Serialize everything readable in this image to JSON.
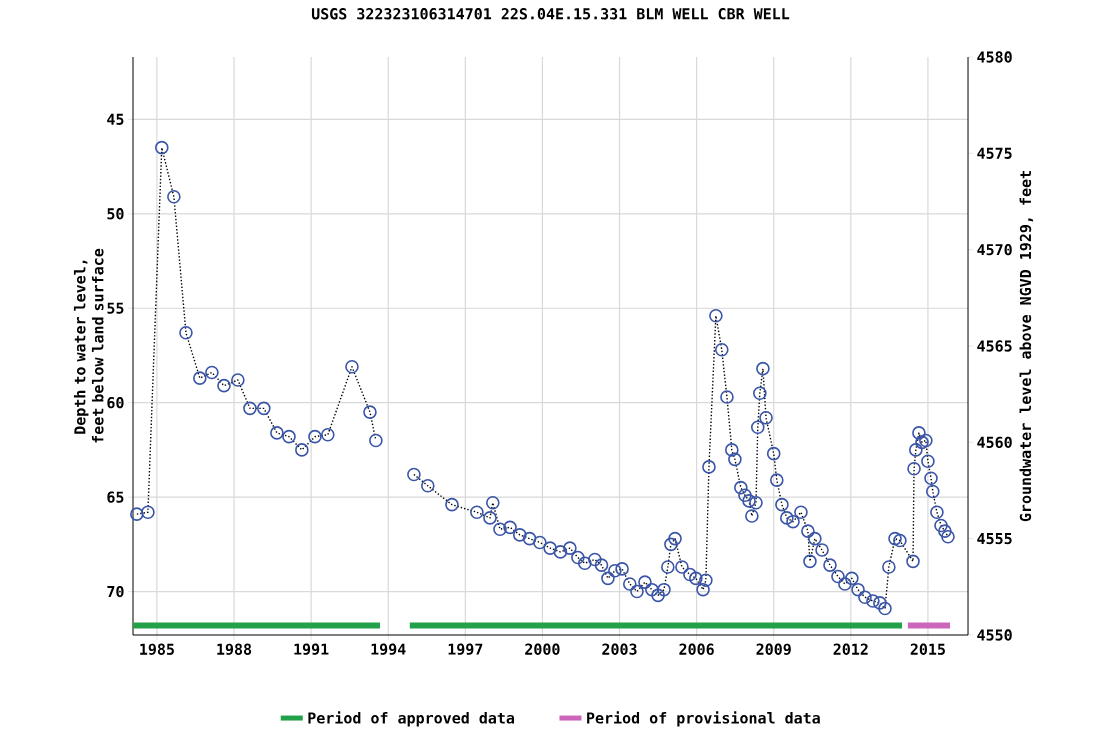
{
  "chart_data": {
    "type": "line",
    "title": "USGS 322323106314701 22S.04E.15.331 BLM WELL CBR WELL",
    "ylabel": "Depth to water level, feet below land surface",
    "y2label": "Groundwater level above NGVD 1929, feet",
    "xlim": [
      1984.07,
      2016.56
    ],
    "xticks": [
      1985,
      1988,
      1991,
      1994,
      1997,
      2000,
      2003,
      2006,
      2009,
      2012,
      2015
    ],
    "ylim": [
      72.3,
      41.7
    ],
    "yticks": [
      45,
      50,
      55,
      60,
      65,
      70
    ],
    "y2lim": [
      4550,
      4580
    ],
    "y2ticks": [
      4550,
      4555,
      4560,
      4565,
      4570,
      4575,
      4580
    ],
    "grid": true,
    "legend": "bottom",
    "series": [
      {
        "color": "#3a55a8",
        "marker": "circle",
        "line_style": "dotted",
        "x": [
          1984.22,
          1984.65,
          1985.19,
          1985.66,
          1986.13,
          1986.67,
          1987.14,
          1987.61,
          1988.15,
          1988.62,
          1989.16,
          1989.67,
          1990.14,
          1990.64,
          1991.15,
          1991.65,
          1992.59,
          1993.29,
          1993.52,
          1994.3,
          1995.0,
          1995.54,
          1996.48,
          1997.45,
          1997.96,
          1998.07,
          1998.35,
          1998.74,
          1999.12,
          1999.5,
          1999.9,
          2000.3,
          2000.7,
          2001.07,
          2001.38,
          2001.65,
          2002.04,
          2002.3,
          2002.55,
          2002.82,
          2003.1,
          2003.4,
          2003.68,
          2003.99,
          2004.26,
          2004.5,
          2004.73,
          2004.88,
          2005.0,
          2005.16,
          2005.43,
          2005.74,
          2005.97,
          2006.25,
          2006.36,
          2006.48,
          2006.75,
          2006.98,
          2007.18,
          2007.37,
          2007.49,
          2007.72,
          2007.88,
          2008.04,
          2008.15,
          2008.31,
          2008.38,
          2008.46,
          2008.58,
          2008.7,
          2009.0,
          2009.12,
          2009.32,
          2009.51,
          2009.75,
          2010.06,
          2010.33,
          2010.41,
          2010.6,
          2010.88,
          2011.19,
          2011.5,
          2011.77,
          2012.04,
          2012.28,
          2012.55,
          2012.86,
          2013.13,
          2013.33,
          2013.48,
          2013.72,
          2013.91,
          2014.42,
          2014.46,
          2014.53,
          2014.65,
          2014.77,
          2014.92,
          2015.0,
          2015.12,
          2015.19,
          2015.35,
          2015.51,
          2015.66,
          2015.78
        ],
        "values": [
          65.9,
          65.8,
          46.5,
          49.1,
          56.3,
          58.7,
          58.4,
          59.1,
          58.8,
          60.3,
          60.3,
          61.6,
          61.8,
          62.5,
          61.8,
          61.7,
          58.1,
          60.5,
          62.0,
          null,
          63.8,
          64.4,
          65.4,
          65.8,
          66.1,
          65.3,
          66.7,
          66.6,
          67.0,
          67.2,
          67.4,
          67.7,
          67.9,
          67.7,
          68.2,
          68.5,
          68.3,
          68.6,
          69.3,
          68.9,
          68.8,
          69.6,
          70.0,
          69.5,
          69.9,
          70.2,
          69.9,
          68.7,
          67.5,
          67.2,
          68.7,
          69.1,
          69.3,
          69.9,
          69.4,
          63.4,
          55.4,
          57.2,
          59.7,
          62.5,
          63.0,
          64.5,
          64.9,
          65.2,
          66.0,
          65.3,
          61.3,
          59.5,
          58.2,
          60.8,
          62.7,
          64.1,
          65.4,
          66.1,
          66.3,
          65.8,
          66.8,
          68.4,
          67.2,
          67.8,
          68.6,
          69.2,
          69.6,
          69.3,
          69.9,
          70.3,
          70.5,
          70.6,
          70.9,
          68.7,
          67.2,
          67.3,
          68.4,
          63.5,
          62.5,
          61.6,
          62.1,
          62.0,
          63.1,
          64.0,
          64.7,
          65.8,
          66.5,
          66.8,
          67.1
        ]
      },
      {
        "name": "Period of approved data",
        "color": "#22a04a",
        "marker": "none",
        "line_style": "solid",
        "x": [
          1984.07,
          1993.68,
          1994.3,
          1994.84,
          2013.99
        ],
        "values": [
          71.8,
          71.8,
          null,
          71.8,
          71.8
        ]
      },
      {
        "name": "Period of provisional data",
        "color": "#cc66bb",
        "marker": "none",
        "line_style": "solid",
        "x": [
          2014.22,
          2015.86
        ],
        "values": [
          71.8,
          71.8
        ]
      }
    ]
  }
}
